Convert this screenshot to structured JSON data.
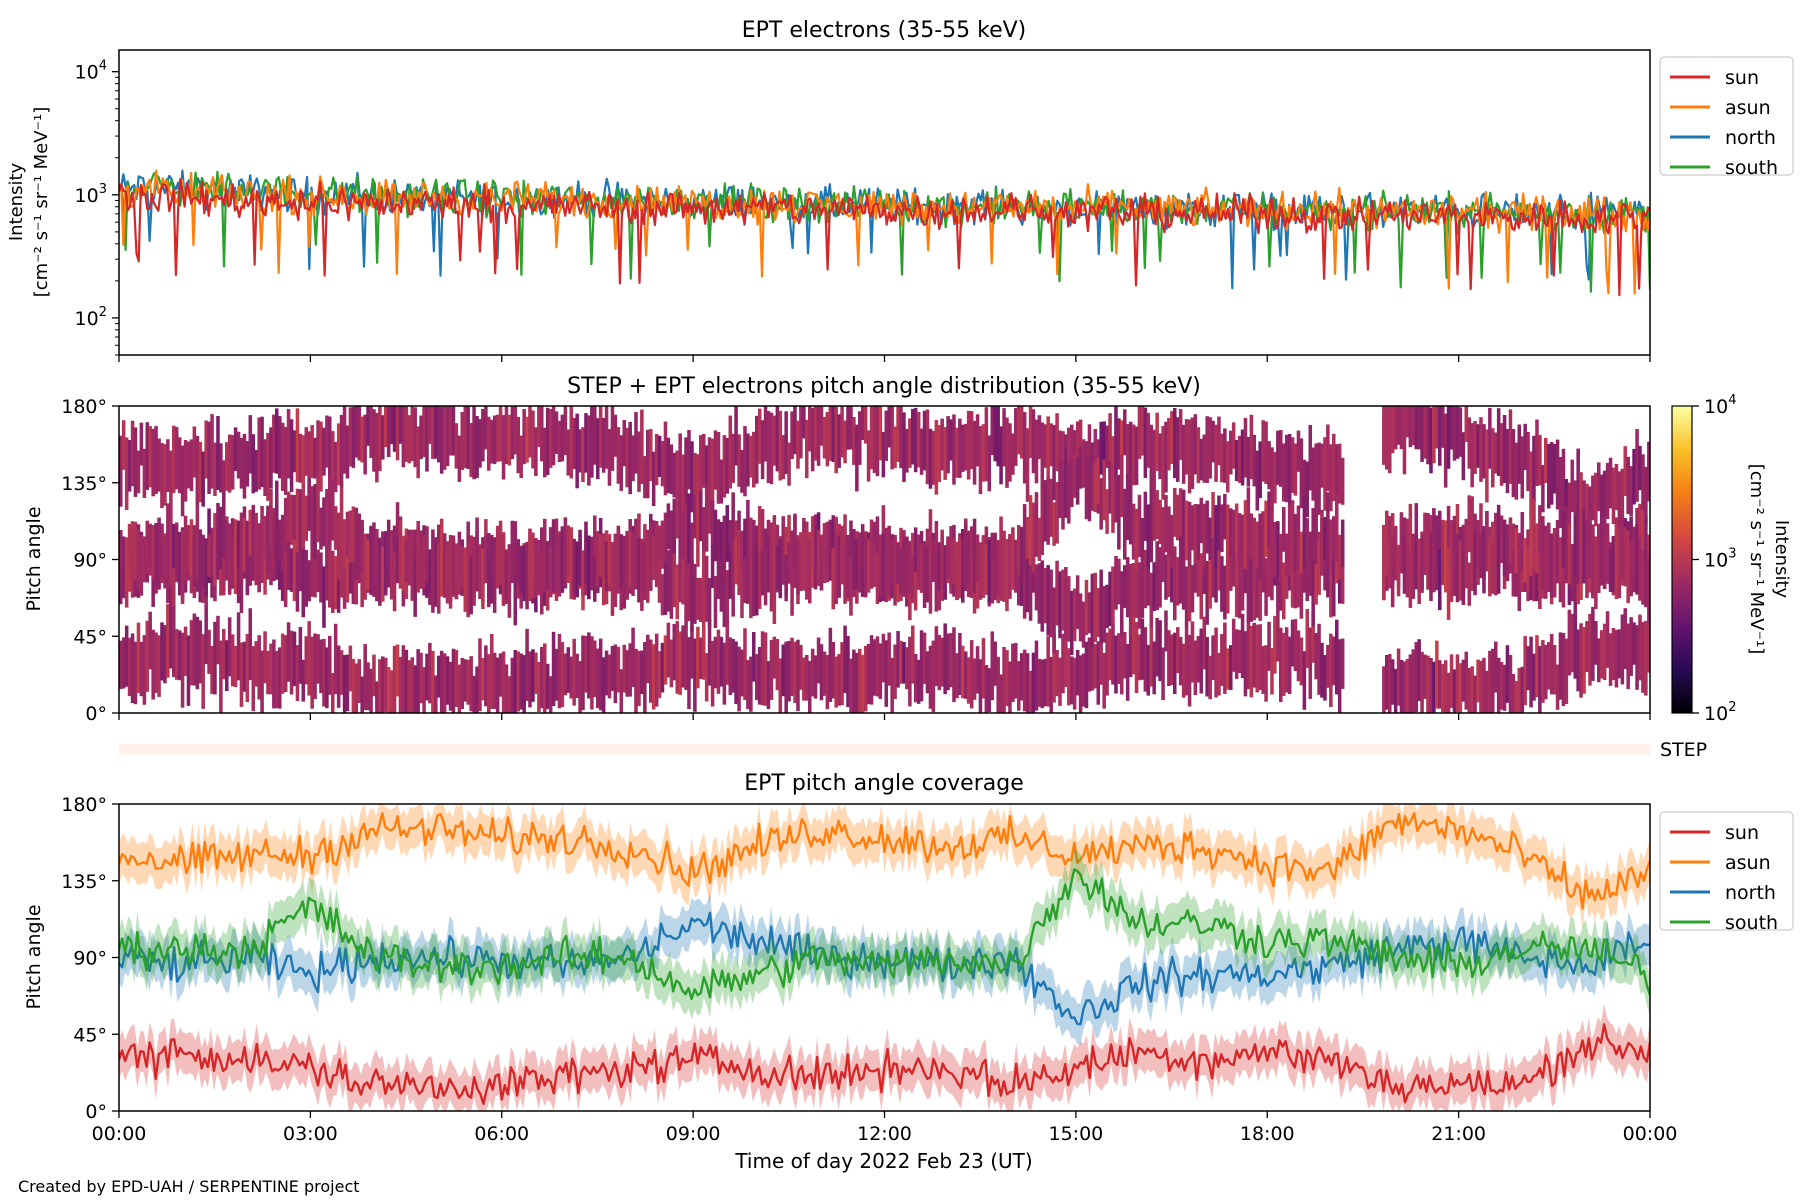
{
  "footer": "Created by EPD-UAH / SERPENTINE project",
  "chart_data": [
    {
      "type": "line",
      "title": "EPT electrons (35-55 keV)",
      "ylabel_lines": [
        "Intensity",
        "[cm$^{-2}$ s$^{-1}$ sr$^{-1}$ MeV$^{-1}$]"
      ],
      "ylabel_lines_display": [
        "Intensity",
        "[cm⁻² s⁻¹ sr⁻¹ MeV⁻¹]"
      ],
      "yscale": "log",
      "ylim": [
        50,
        15000
      ],
      "yticks": [
        {
          "v": 100,
          "base": "10",
          "exp": "2"
        },
        {
          "v": 1000,
          "base": "10",
          "exp": "3"
        },
        {
          "v": 10000,
          "base": "10",
          "exp": "4"
        }
      ],
      "xlim_hours": [
        0,
        24
      ],
      "legend_position": "outside-right",
      "x": [
        0,
        1,
        2,
        3,
        4,
        5,
        6,
        7,
        8,
        9,
        10,
        11,
        12,
        13,
        14,
        15,
        16,
        17,
        18,
        19,
        20,
        21,
        22,
        23,
        24
      ],
      "series": [
        {
          "name": "sun",
          "color": "#d62728",
          "values": [
            1000,
            950,
            900,
            880,
            860,
            850,
            830,
            810,
            800,
            790,
            780,
            770,
            760,
            750,
            740,
            730,
            720,
            710,
            700,
            690,
            680,
            670,
            660,
            650,
            640
          ]
        },
        {
          "name": "asun",
          "color": "#ff7f0e",
          "values": [
            1100,
            1050,
            1000,
            980,
            960,
            950,
            930,
            900,
            880,
            860,
            840,
            830,
            820,
            800,
            790,
            780,
            770,
            760,
            750,
            740,
            730,
            720,
            710,
            700,
            690
          ]
        },
        {
          "name": "north",
          "color": "#1f77b4",
          "values": [
            1150,
            1100,
            1050,
            1000,
            980,
            960,
            940,
            920,
            900,
            880,
            860,
            840,
            830,
            820,
            800,
            790,
            780,
            770,
            760,
            750,
            740,
            730,
            720,
            710,
            700
          ]
        },
        {
          "name": "south",
          "color": "#2ca02c",
          "values": [
            1200,
            1150,
            1080,
            1020,
            1000,
            970,
            950,
            920,
            900,
            880,
            860,
            840,
            830,
            810,
            800,
            790,
            780,
            770,
            760,
            750,
            740,
            730,
            720,
            710,
            700
          ]
        }
      ]
    },
    {
      "type": "heatmap",
      "title": "STEP + EPT electrons pitch angle distribution (35-55 keV)",
      "ylabel": "Pitch angle",
      "ylim": [
        0,
        180
      ],
      "yticks": [
        "0°",
        "45°",
        "90°",
        "135°",
        "180°"
      ],
      "xlim_hours": [
        0,
        24
      ],
      "colorbar": {
        "label_lines": [
          "Intensity",
          "[cm⁻² s⁻¹ sr⁻¹ MeV⁻¹]"
        ],
        "scale": "log",
        "range": [
          100,
          10000
        ],
        "ticks": [
          {
            "base": "10",
            "exp": "2"
          },
          {
            "base": "10",
            "exp": "3"
          },
          {
            "base": "10",
            "exp": "4"
          }
        ],
        "colormap": "inferno",
        "stops": [
          "#000004",
          "#280b54",
          "#65156e",
          "#9f2a63",
          "#d44842",
          "#f57d15",
          "#fac127",
          "#fcffa4"
        ]
      },
      "typical_intensity": 700,
      "data_gaps_hours": [
        [
          19.2,
          19.8
        ]
      ]
    },
    {
      "type": "bar",
      "label": "STEP",
      "color": "#fff0ec"
    },
    {
      "type": "line",
      "title": "EPT pitch angle coverage",
      "xlabel": "Time of day 2022 Feb 23 (UT)",
      "ylabel": "Pitch angle",
      "ylim": [
        0,
        180
      ],
      "yticks": [
        "0°",
        "45°",
        "90°",
        "135°",
        "180°"
      ],
      "xlim_hours": [
        0,
        24
      ],
      "xticks": [
        "00:00",
        "03:00",
        "06:00",
        "09:00",
        "12:00",
        "15:00",
        "18:00",
        "21:00",
        "00:00"
      ],
      "band_halfwidth_deg": 12,
      "legend_position": "outside-right",
      "x": [
        0,
        1,
        2,
        3,
        4,
        5,
        6,
        7,
        8,
        9,
        10,
        11,
        12,
        13,
        14,
        15,
        16,
        17,
        18,
        19,
        20,
        21,
        22,
        23,
        24
      ],
      "series": [
        {
          "name": "sun",
          "color": "#d62728",
          "values": [
            30,
            35,
            30,
            25,
            15,
            15,
            15,
            20,
            25,
            30,
            25,
            20,
            25,
            25,
            15,
            25,
            35,
            30,
            35,
            30,
            15,
            15,
            15,
            40,
            35
          ]
        },
        {
          "name": "asun",
          "color": "#ff7f0e",
          "values": [
            150,
            145,
            150,
            150,
            165,
            165,
            160,
            160,
            155,
            140,
            155,
            165,
            160,
            155,
            160,
            150,
            155,
            155,
            145,
            140,
            170,
            165,
            150,
            125,
            140
          ]
        },
        {
          "name": "north",
          "color": "#1f77b4",
          "values": [
            90,
            85,
            90,
            80,
            90,
            90,
            88,
            85,
            90,
            110,
            100,
            90,
            90,
            85,
            90,
            55,
            75,
            80,
            80,
            85,
            95,
            100,
            90,
            85,
            100
          ]
        },
        {
          "name": "south",
          "color": "#2ca02c",
          "values": [
            95,
            95,
            95,
            120,
            90,
            85,
            85,
            90,
            90,
            70,
            80,
            90,
            85,
            90,
            85,
            140,
            110,
            110,
            100,
            100,
            90,
            85,
            95,
            95,
            80
          ]
        }
      ]
    }
  ]
}
